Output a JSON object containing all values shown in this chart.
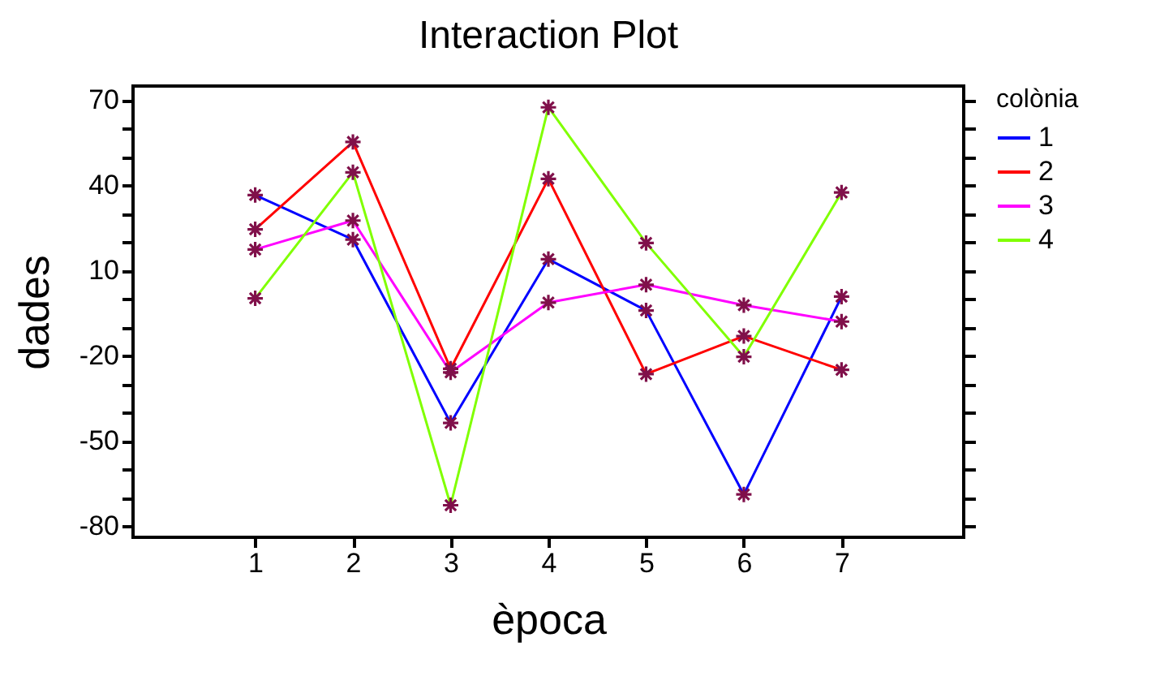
{
  "chart_data": {
    "type": "line",
    "title": "Interaction Plot",
    "xlabel": "època",
    "ylabel": "dades",
    "legend_title": "colònia",
    "x": [
      1,
      2,
      3,
      4,
      5,
      6,
      7
    ],
    "series": [
      {
        "name": "1",
        "color": "#0000ff",
        "values": [
          36.6,
          20.9,
          -43.7,
          14,
          -4.1,
          -68.9,
          0.8
        ]
      },
      {
        "name": "2",
        "color": "#ff0000",
        "values": [
          24.5,
          55.3,
          -24.6,
          42.3,
          -26.5,
          -13.1,
          -25
        ]
      },
      {
        "name": "3",
        "color": "#ff00ff",
        "values": [
          17.4,
          27.6,
          -25.9,
          -1.3,
          5,
          -2.2,
          -8
        ]
      },
      {
        "name": "4",
        "color": "#80ff00",
        "values": [
          0.2,
          44.6,
          -72.7,
          67.5,
          19.7,
          -20.4,
          37.5
        ]
      }
    ],
    "xlim": [
      -0.25,
      8.25
    ],
    "xticks": [
      1,
      2,
      3,
      4,
      5,
      6,
      7
    ],
    "ylim": [
      -84,
      75
    ],
    "yticks": [
      {
        "value": -80,
        "label": "-80"
      },
      {
        "value": -70,
        "label": null
      },
      {
        "value": -60,
        "label": null
      },
      {
        "value": -50,
        "label": "-50"
      },
      {
        "value": -40,
        "label": null
      },
      {
        "value": -30,
        "label": null
      },
      {
        "value": -20,
        "label": "-20"
      },
      {
        "value": -10,
        "label": null
      },
      {
        "value": 0,
        "label": null
      },
      {
        "value": 10,
        "label": "10"
      },
      {
        "value": 20,
        "label": null
      },
      {
        "value": 30,
        "label": null
      },
      {
        "value": 40,
        "label": "40"
      },
      {
        "value": 50,
        "label": null
      },
      {
        "value": 60,
        "label": null
      },
      {
        "value": 70,
        "label": "70"
      }
    ],
    "grid": false,
    "legend": "top right",
    "marker": "cross",
    "line_style": "solid"
  }
}
